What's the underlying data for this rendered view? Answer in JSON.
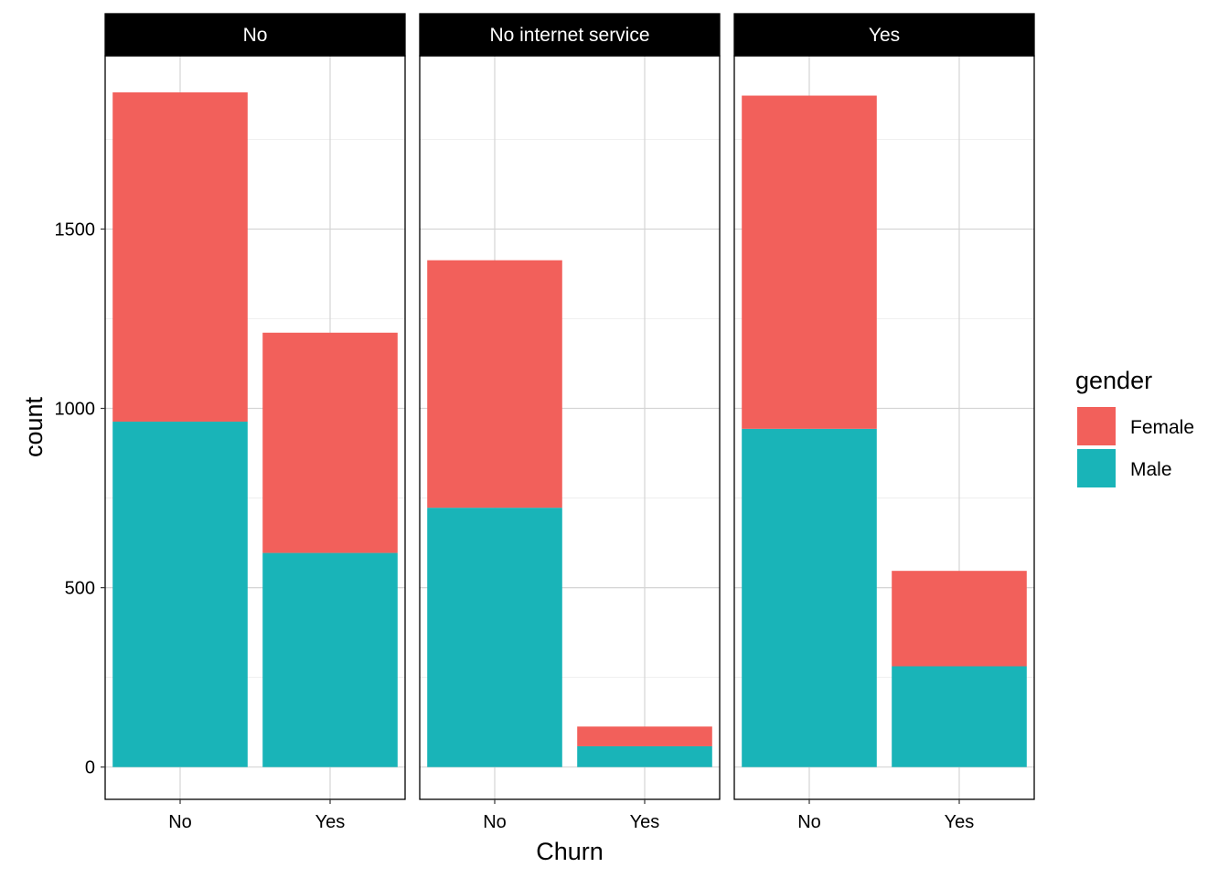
{
  "chart_data": {
    "type": "bar",
    "stacked": true,
    "facet_variable": "InternetService",
    "facets": [
      "No",
      "No internet service",
      "Yes"
    ],
    "categories": [
      "No",
      "Yes"
    ],
    "xlabel": "Churn",
    "ylabel": "count",
    "ylim": [
      -90,
      1983
    ],
    "yticks": [
      0,
      500,
      1000,
      1500
    ],
    "ytick_labels": [
      "0",
      "500",
      "1000",
      "1500"
    ],
    "grid": true,
    "legend": {
      "title": "gender",
      "position": "right",
      "entries": [
        "Female",
        "Male"
      ]
    },
    "series": [
      {
        "name": "Male",
        "color": "#19B4B8",
        "values": [
          [
            963,
            597
          ],
          [
            723,
            58
          ],
          [
            943,
            281
          ]
        ]
      },
      {
        "name": "Female",
        "color": "#F2605B",
        "values": [
          [
            918,
            614
          ],
          [
            690,
            55
          ],
          [
            929,
            266
          ]
        ]
      }
    ]
  }
}
